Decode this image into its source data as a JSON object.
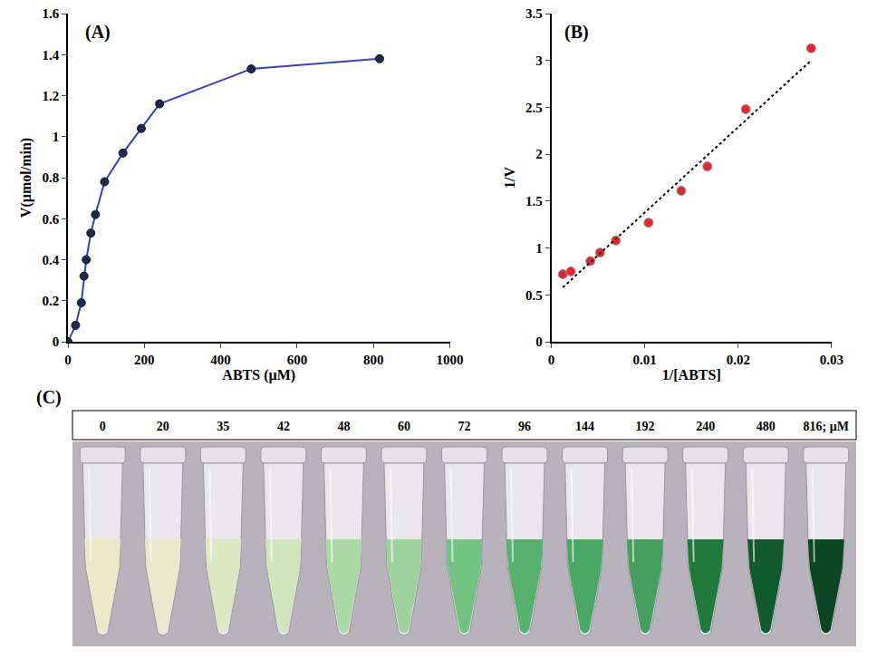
{
  "chart_data": [
    {
      "type": "line",
      "label": "(A)",
      "x_label": "ABTS (µM)",
      "y_label": "V(µmol/min)",
      "x": [
        0,
        20,
        35,
        42,
        48,
        60,
        72,
        96,
        144,
        192,
        240,
        480,
        816
      ],
      "series": [
        {
          "type": "line",
          "color": "#3340d0",
          "marker": "circle",
          "line_style": "solid",
          "values": [
            0,
            0.08,
            0.19,
            0.32,
            0.4,
            0.53,
            0.62,
            0.78,
            0.92,
            1.04,
            1.16,
            1.33,
            1.38
          ]
        }
      ],
      "xlim": [
        0,
        1000
      ],
      "xticks": [
        0,
        200,
        400,
        600,
        800,
        1000
      ],
      "ylim": [
        0,
        1.6
      ],
      "yticks": [
        0,
        0.2,
        0.4,
        0.6,
        0.8,
        1,
        1.2,
        1.4,
        1.6
      ],
      "grid": false
    },
    {
      "type": "scatter",
      "label": "(B)",
      "x_label": "1/[ABTS]",
      "y_label": "1/V",
      "x": [
        0.00123,
        0.00208,
        0.00417,
        0.0052,
        0.0069,
        0.0104,
        0.0139,
        0.0167,
        0.0208,
        0.0278
      ],
      "series": [
        {
          "type": "scatter",
          "color": "#e8262a",
          "marker": "circle",
          "values": [
            0.72,
            0.75,
            0.86,
            0.95,
            1.08,
            1.27,
            1.61,
            1.87,
            2.48,
            3.13
          ]
        },
        {
          "type": "line",
          "color": "#000000",
          "line_style": "dotted",
          "x": [
            0.00123,
            0.0278
          ],
          "values": [
            0.58,
            3.0
          ]
        }
      ],
      "xlim": [
        0,
        0.03
      ],
      "xticks": [
        0,
        0.01,
        0.02,
        0.03
      ],
      "ylim": [
        0,
        3.5
      ],
      "yticks": [
        0,
        0.5,
        1,
        1.5,
        2,
        2.5,
        3,
        3.5
      ],
      "grid": false
    }
  ],
  "image_panel": {
    "label": "(C)",
    "labels": [
      "0",
      "20",
      "35",
      "42",
      "48",
      "60",
      "72",
      "96",
      "144",
      "192",
      "240",
      "480",
      "816; μM"
    ],
    "colors": [
      "#ece9c9",
      "#e7e9cb",
      "#dde8c2",
      "#d0e5bb",
      "#abd9a6",
      "#9dd29e",
      "#72c381",
      "#55b16c",
      "#4aa865",
      "#45a060",
      "#1f7a3c",
      "#105a2b",
      "#0a4722"
    ]
  }
}
